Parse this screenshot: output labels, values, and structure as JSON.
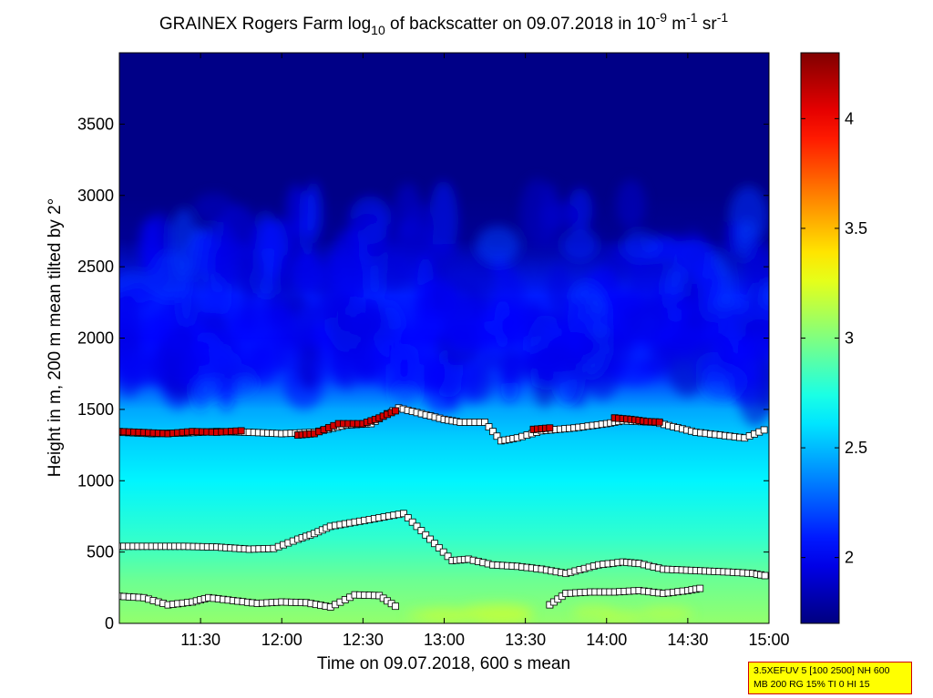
{
  "chart_data": {
    "type": "heatmap",
    "title": {
      "prefix": "GRAINEX Rogers Farm log",
      "log_sub": "10",
      "middle": " of backscatter on 09.07.2018 in 10",
      "exp1": "-9",
      "unit_m": " m",
      "exp2": "-1",
      "unit_sr": " sr",
      "exp3": "-1"
    },
    "xlabel": "Time on 09.07.2018, 600 s mean",
    "ylabel": "Height in m, 200 m mean tilted by 2°",
    "x_range_hours": [
      11.0,
      15.0
    ],
    "ylim": [
      0,
      4000
    ],
    "x_ticks": [
      {
        "label": "11:30",
        "value": 11.5
      },
      {
        "label": "12:00",
        "value": 12.0
      },
      {
        "label": "12:30",
        "value": 12.5
      },
      {
        "label": "13:00",
        "value": 13.0
      },
      {
        "label": "13:30",
        "value": 13.5
      },
      {
        "label": "14:00",
        "value": 14.0
      },
      {
        "label": "14:30",
        "value": 14.5
      },
      {
        "label": "15:00",
        "value": 15.0
      }
    ],
    "y_ticks": [
      0,
      500,
      1000,
      1500,
      2000,
      2500,
      3000,
      3500
    ],
    "colorbar": {
      "range": [
        1.7,
        4.3
      ],
      "ticks": [
        {
          "label": "2",
          "value": 2.0
        },
        {
          "label": "2.5",
          "value": 2.5
        },
        {
          "label": "3",
          "value": 3.0
        },
        {
          "label": "3.5",
          "value": 3.5
        },
        {
          "label": "4",
          "value": 4.0
        }
      ],
      "colormap": "jet"
    },
    "field_profile": {
      "heights_m": [
        0,
        300,
        600,
        1000,
        1300,
        1500,
        1700,
        2000,
        2300,
        2700,
        3000,
        4000
      ],
      "log10_backscatter": [
        3.05,
        2.95,
        2.8,
        2.65,
        2.55,
        2.45,
        2.2,
        2.05,
        2.1,
        1.75,
        1.72,
        1.72
      ]
    },
    "series": [
      {
        "color": "#ffffff",
        "points": [
          [
            11.0,
            1340
          ],
          [
            11.2,
            1330
          ],
          [
            11.4,
            1335
          ],
          [
            11.6,
            1345
          ],
          [
            11.8,
            1340
          ],
          [
            12.0,
            1330
          ],
          [
            12.2,
            1340
          ],
          [
            12.4,
            1390
          ],
          [
            12.55,
            1400
          ],
          [
            12.65,
            1470
          ],
          [
            12.72,
            1510
          ],
          [
            13.0,
            1430
          ],
          [
            13.1,
            1410
          ],
          [
            13.25,
            1410
          ],
          [
            13.35,
            1280
          ],
          [
            13.45,
            1300
          ],
          [
            13.6,
            1350
          ],
          [
            13.8,
            1370
          ],
          [
            14.0,
            1400
          ],
          [
            14.1,
            1420
          ],
          [
            14.3,
            1410
          ],
          [
            14.55,
            1340
          ],
          [
            14.7,
            1320
          ],
          [
            14.85,
            1300
          ],
          [
            15.0,
            1370
          ]
        ]
      },
      {
        "color": "#d40000",
        "points": [
          [
            11.0,
            1345
          ],
          [
            11.15,
            1338
          ],
          [
            11.3,
            1330
          ],
          [
            11.45,
            1345
          ],
          [
            11.6,
            1340
          ],
          [
            11.75,
            1350
          ],
          [
            12.1,
            1320
          ],
          [
            12.2,
            1330
          ],
          [
            12.35,
            1400
          ],
          [
            12.5,
            1400
          ],
          [
            12.6,
            1440
          ],
          [
            12.7,
            1490
          ],
          [
            13.55,
            1360
          ],
          [
            13.65,
            1370
          ],
          [
            14.05,
            1440
          ],
          [
            14.15,
            1430
          ],
          [
            14.25,
            1415
          ],
          [
            14.35,
            1410
          ]
        ]
      },
      {
        "color": "#ffffff",
        "points": [
          [
            11.0,
            540
          ],
          [
            11.2,
            540
          ],
          [
            11.4,
            540
          ],
          [
            11.6,
            535
          ],
          [
            11.8,
            520
          ],
          [
            11.95,
            525
          ],
          [
            12.1,
            590
          ],
          [
            12.2,
            630
          ],
          [
            12.3,
            680
          ],
          [
            12.45,
            710
          ],
          [
            12.6,
            740
          ],
          [
            12.75,
            770
          ],
          [
            13.05,
            440
          ],
          [
            13.15,
            450
          ],
          [
            13.3,
            410
          ],
          [
            13.45,
            400
          ],
          [
            13.6,
            380
          ],
          [
            13.75,
            350
          ],
          [
            13.95,
            410
          ],
          [
            14.1,
            430
          ],
          [
            14.2,
            420
          ],
          [
            14.35,
            380
          ],
          [
            14.55,
            370
          ],
          [
            14.75,
            360
          ],
          [
            14.9,
            350
          ],
          [
            15.0,
            330
          ]
        ]
      },
      {
        "color": "#ffffff",
        "points": [
          [
            11.0,
            190
          ],
          [
            11.15,
            180
          ],
          [
            11.3,
            130
          ],
          [
            11.45,
            150
          ],
          [
            11.55,
            180
          ],
          [
            11.7,
            160
          ],
          [
            11.85,
            140
          ],
          [
            12.0,
            150
          ],
          [
            12.15,
            145
          ],
          [
            12.3,
            115
          ],
          [
            12.45,
            200
          ],
          [
            12.6,
            195
          ],
          [
            12.7,
            120
          ],
          [
            13.65,
            130
          ],
          [
            13.75,
            210
          ],
          [
            13.9,
            220
          ],
          [
            14.05,
            220
          ],
          [
            14.2,
            230
          ],
          [
            14.35,
            210
          ],
          [
            14.5,
            230
          ],
          [
            14.6,
            250
          ]
        ]
      }
    ]
  },
  "info_box": {
    "line1": "3.5XEFUV 5 [100 2500] NH 600",
    "line2": "MB 200 RG 15% TI 0 HI 15",
    "bg_color": "#ffff00",
    "border_color": "#d00000"
  }
}
